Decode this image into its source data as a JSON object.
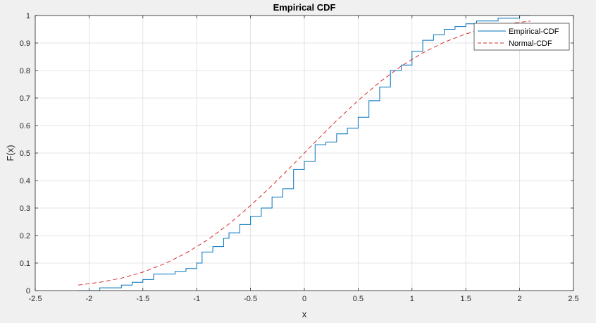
{
  "chart_data": {
    "type": "line",
    "title": "Empirical CDF",
    "xlabel": "x",
    "ylabel": "F(x)",
    "xlim": [
      -2.5,
      2.5
    ],
    "ylim": [
      0,
      1
    ],
    "xticks": [
      -2.5,
      -2,
      -1.5,
      -1,
      -0.5,
      0,
      0.5,
      1,
      1.5,
      2,
      2.5
    ],
    "xtick_labels": [
      "-2.5",
      "-2",
      "-1.5",
      "-1",
      "-0.5",
      "0",
      "0.5",
      "1",
      "1.5",
      "2",
      "2.5"
    ],
    "yticks": [
      0,
      0.1,
      0.2,
      0.3,
      0.4,
      0.5,
      0.6,
      0.7,
      0.8,
      0.9,
      1
    ],
    "ytick_labels": [
      "0",
      "0.1",
      "0.2",
      "0.3",
      "0.4",
      "0.5",
      "0.6",
      "0.7",
      "0.8",
      "0.9",
      "1"
    ],
    "grid": true,
    "legend_position": "top-right",
    "series": [
      {
        "name": "Empirical-CDF",
        "style": "step",
        "color": "#0072bd",
        "x": [
          -2.1,
          -1.9,
          -1.7,
          -1.6,
          -1.5,
          -1.4,
          -1.2,
          -1.1,
          -1.0,
          -0.95,
          -0.85,
          -0.75,
          -0.7,
          -0.6,
          -0.5,
          -0.4,
          -0.3,
          -0.2,
          -0.2,
          -0.1,
          0.0,
          0.1,
          0.2,
          0.3,
          0.4,
          0.5,
          0.6,
          0.7,
          0.8,
          0.9,
          1.0,
          1.1,
          1.2,
          1.3,
          1.4,
          1.5,
          1.6,
          1.8,
          2.0,
          2.1
        ],
        "y": [
          0,
          0.01,
          0.02,
          0.03,
          0.04,
          0.06,
          0.07,
          0.08,
          0.1,
          0.14,
          0.16,
          0.19,
          0.21,
          0.24,
          0.27,
          0.3,
          0.34,
          0.35,
          0.37,
          0.44,
          0.47,
          0.53,
          0.54,
          0.57,
          0.59,
          0.63,
          0.69,
          0.74,
          0.8,
          0.82,
          0.87,
          0.91,
          0.93,
          0.95,
          0.96,
          0.97,
          0.98,
          0.99,
          1.0,
          1.0
        ]
      },
      {
        "name": "Normal-CDF",
        "style": "dashed",
        "color": "#d62b2b",
        "x": [
          -2.1,
          -1.9,
          -1.7,
          -1.5,
          -1.3,
          -1.1,
          -0.9,
          -0.7,
          -0.5,
          -0.3,
          -0.1,
          0.0,
          0.1,
          0.3,
          0.5,
          0.7,
          0.9,
          1.1,
          1.3,
          1.5,
          1.7,
          1.9,
          2.1
        ],
        "y": [
          0.02,
          0.03,
          0.045,
          0.067,
          0.097,
          0.136,
          0.184,
          0.242,
          0.309,
          0.382,
          0.46,
          0.5,
          0.54,
          0.618,
          0.691,
          0.758,
          0.816,
          0.864,
          0.903,
          0.933,
          0.955,
          0.97,
          0.98
        ]
      }
    ]
  }
}
